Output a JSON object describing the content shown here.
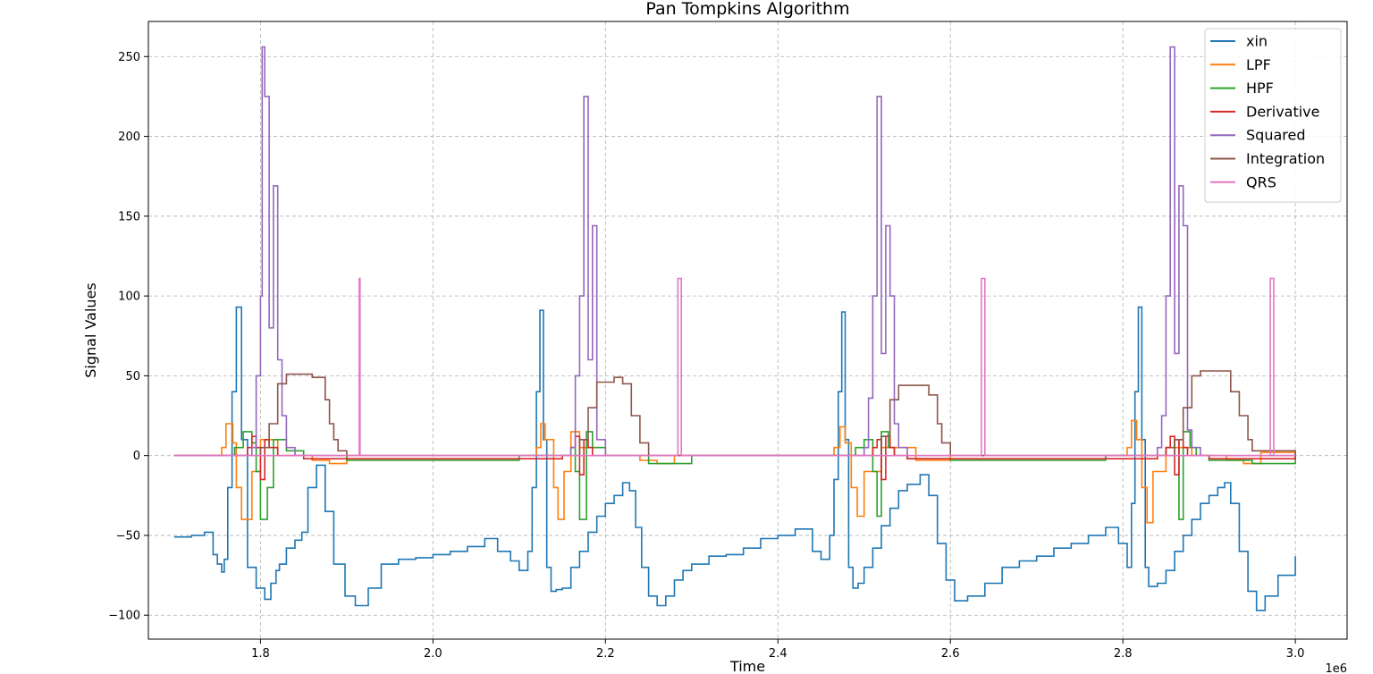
{
  "chart_data": {
    "type": "line",
    "title": "Pan Tompkins Algorithm",
    "xlabel": "Time",
    "ylabel": "Signal Values",
    "x_scale_label": "1e6",
    "xlim": [
      1.67,
      3.06
    ],
    "ylim": [
      -115,
      272
    ],
    "x_ticks": [
      1.8,
      2.0,
      2.2,
      2.4,
      2.6,
      2.8,
      3.0
    ],
    "x_tick_labels": [
      "1.8",
      "2.0",
      "2.2",
      "2.4",
      "2.6",
      "2.8",
      "3.0"
    ],
    "y_ticks": [
      -100,
      -50,
      0,
      50,
      100,
      150,
      200,
      250
    ],
    "y_tick_labels": [
      "−100",
      "−50",
      "0",
      "50",
      "100",
      "150",
      "200",
      "250"
    ],
    "grid": true,
    "legend_position": "top-right",
    "step": true,
    "series": [
      {
        "name": "xin",
        "color": "#1f77b4",
        "x": [
          1.7,
          1.72,
          1.735,
          1.745,
          1.75,
          1.755,
          1.758,
          1.762,
          1.767,
          1.772,
          1.778,
          1.785,
          1.795,
          1.805,
          1.812,
          1.818,
          1.822,
          1.83,
          1.84,
          1.848,
          1.855,
          1.865,
          1.875,
          1.885,
          1.898,
          1.91,
          1.925,
          1.94,
          1.96,
          1.98,
          2.0,
          2.02,
          2.04,
          2.06,
          2.075,
          2.09,
          2.1,
          2.11,
          2.115,
          2.12,
          2.124,
          2.128,
          2.132,
          2.137,
          2.143,
          2.15,
          2.16,
          2.17,
          2.18,
          2.19,
          2.2,
          2.21,
          2.22,
          2.228,
          2.235,
          2.242,
          2.25,
          2.26,
          2.27,
          2.28,
          2.29,
          2.3,
          2.32,
          2.34,
          2.36,
          2.38,
          2.4,
          2.42,
          2.44,
          2.45,
          2.46,
          2.465,
          2.47,
          2.474,
          2.478,
          2.482,
          2.487,
          2.493,
          2.5,
          2.51,
          2.52,
          2.53,
          2.54,
          2.55,
          2.565,
          2.575,
          2.585,
          2.595,
          2.605,
          2.62,
          2.64,
          2.66,
          2.68,
          2.7,
          2.72,
          2.74,
          2.76,
          2.78,
          2.795,
          2.805,
          2.81,
          2.814,
          2.818,
          2.822,
          2.826,
          2.83,
          2.84,
          2.85,
          2.86,
          2.87,
          2.88,
          2.89,
          2.9,
          2.91,
          2.918,
          2.925,
          2.935,
          2.945,
          2.955,
          2.965,
          2.98,
          3.0
        ],
        "y": [
          -51,
          -50,
          -48,
          -62,
          -68,
          -73,
          -65,
          -20,
          40,
          93,
          10,
          -70,
          -83,
          -90,
          -80,
          -72,
          -68,
          -58,
          -53,
          -48,
          -20,
          -6,
          -35,
          -68,
          -88,
          -94,
          -83,
          -68,
          -65,
          -64,
          -62,
          -60,
          -57,
          -52,
          -60,
          -66,
          -72,
          -60,
          -20,
          40,
          91,
          10,
          -70,
          -85,
          -84,
          -83,
          -70,
          -60,
          -48,
          -38,
          -30,
          -25,
          -17,
          -22,
          -45,
          -70,
          -88,
          -94,
          -88,
          -78,
          -72,
          -68,
          -63,
          -62,
          -58,
          -52,
          -50,
          -46,
          -60,
          -65,
          -50,
          -15,
          40,
          90,
          10,
          -70,
          -83,
          -80,
          -70,
          -58,
          -44,
          -33,
          -22,
          -18,
          -12,
          -25,
          -55,
          -78,
          -91,
          -88,
          -80,
          -70,
          -66,
          -63,
          -58,
          -55,
          -50,
          -45,
          -55,
          -70,
          -30,
          40,
          93,
          10,
          -70,
          -82,
          -80,
          -72,
          -60,
          -50,
          -40,
          -30,
          -25,
          -20,
          -17,
          -30,
          -60,
          -85,
          -97,
          -88,
          -75,
          -63
        ]
      },
      {
        "name": "LPF",
        "color": "#ff7f0e",
        "x": [
          1.7,
          1.74,
          1.755,
          1.76,
          1.768,
          1.772,
          1.778,
          1.79,
          1.8,
          1.82,
          1.86,
          1.88,
          1.9,
          2.1,
          2.12,
          2.125,
          2.13,
          2.14,
          2.145,
          2.152,
          2.16,
          2.17,
          2.2,
          2.24,
          2.26,
          2.28,
          2.45,
          2.465,
          2.472,
          2.478,
          2.485,
          2.492,
          2.5,
          2.52,
          2.56,
          2.58,
          2.6,
          2.78,
          2.805,
          2.81,
          2.816,
          2.822,
          2.828,
          2.835,
          2.85,
          2.88,
          2.92,
          2.94,
          2.96,
          3.0
        ],
        "y": [
          0,
          0,
          5,
          20,
          8,
          -20,
          -40,
          -10,
          10,
          0,
          -3,
          -5,
          0,
          0,
          5,
          20,
          10,
          -20,
          -40,
          -10,
          15,
          5,
          0,
          -3,
          -5,
          0,
          0,
          5,
          18,
          8,
          -20,
          -38,
          -10,
          5,
          -3,
          -3,
          0,
          0,
          5,
          22,
          10,
          -20,
          -42,
          -10,
          5,
          0,
          -3,
          -5,
          2,
          0
        ]
      },
      {
        "name": "HPF",
        "color": "#2ca02c",
        "x": [
          1.7,
          1.76,
          1.77,
          1.78,
          1.79,
          1.795,
          1.8,
          1.808,
          1.815,
          1.83,
          1.85,
          1.9,
          2.1,
          2.15,
          2.16,
          2.165,
          2.17,
          2.178,
          2.185,
          2.2,
          2.25,
          2.3,
          2.45,
          2.49,
          2.5,
          2.51,
          2.515,
          2.52,
          2.528,
          2.535,
          2.55,
          2.6,
          2.78,
          2.84,
          2.85,
          2.86,
          2.865,
          2.87,
          2.878,
          2.885,
          2.9,
          2.95,
          3.0
        ],
        "y": [
          0,
          0,
          5,
          15,
          8,
          -10,
          -40,
          -20,
          10,
          3,
          0,
          -3,
          0,
          0,
          5,
          -10,
          -40,
          15,
          5,
          0,
          -5,
          0,
          0,
          5,
          10,
          -10,
          -38,
          15,
          5,
          0,
          -2,
          -3,
          0,
          0,
          5,
          10,
          -40,
          15,
          5,
          0,
          -3,
          -5,
          0
        ]
      },
      {
        "name": "Derivative",
        "color": "#d62728",
        "x": [
          1.7,
          1.78,
          1.785,
          1.79,
          1.795,
          1.8,
          1.805,
          1.81,
          1.82,
          1.85,
          2.15,
          2.16,
          2.165,
          2.17,
          2.175,
          2.18,
          2.185,
          2.2,
          2.5,
          2.51,
          2.515,
          2.52,
          2.525,
          2.53,
          2.535,
          2.55,
          2.84,
          2.85,
          2.855,
          2.86,
          2.865,
          2.87,
          2.875,
          2.9,
          3.0
        ],
        "y": [
          0,
          0,
          5,
          12,
          5,
          -15,
          10,
          5,
          0,
          -2,
          0,
          5,
          12,
          -12,
          10,
          5,
          0,
          0,
          0,
          5,
          10,
          -15,
          12,
          5,
          0,
          -2,
          0,
          5,
          12,
          -12,
          10,
          5,
          0,
          -2,
          0
        ]
      },
      {
        "name": "Squared",
        "color": "#9467bd",
        "x": [
          1.7,
          1.79,
          1.795,
          1.8,
          1.802,
          1.805,
          1.81,
          1.815,
          1.82,
          1.825,
          1.83,
          1.84,
          2.16,
          2.165,
          2.17,
          2.175,
          2.18,
          2.185,
          2.19,
          2.2,
          2.5,
          2.505,
          2.51,
          2.515,
          2.52,
          2.525,
          2.53,
          2.535,
          2.54,
          2.55,
          2.84,
          2.845,
          2.85,
          2.855,
          2.86,
          2.865,
          2.87,
          2.875,
          2.88,
          2.89,
          3.0
        ],
        "y": [
          0,
          5,
          50,
          100,
          256,
          225,
          80,
          169,
          60,
          25,
          5,
          0,
          5,
          50,
          100,
          225,
          60,
          144,
          10,
          0,
          5,
          36,
          100,
          225,
          64,
          144,
          100,
          20,
          5,
          0,
          5,
          25,
          100,
          256,
          64,
          169,
          144,
          16,
          5,
          0,
          0
        ]
      },
      {
        "name": "Integration",
        "color": "#8c564b",
        "x": [
          1.7,
          1.78,
          1.8,
          1.81,
          1.82,
          1.83,
          1.84,
          1.86,
          1.875,
          1.88,
          1.885,
          1.89,
          1.9,
          2.16,
          2.17,
          2.18,
          2.19,
          2.21,
          2.22,
          2.23,
          2.24,
          2.25,
          2.51,
          2.52,
          2.53,
          2.54,
          2.56,
          2.575,
          2.585,
          2.59,
          2.6,
          2.85,
          2.86,
          2.87,
          2.88,
          2.89,
          2.91,
          2.925,
          2.935,
          2.945,
          2.95,
          3.0
        ],
        "y": [
          0,
          0,
          5,
          20,
          45,
          51,
          51,
          49,
          35,
          20,
          10,
          3,
          0,
          0,
          10,
          30,
          46,
          49,
          45,
          25,
          8,
          0,
          0,
          12,
          35,
          44,
          44,
          38,
          20,
          8,
          0,
          0,
          10,
          30,
          50,
          53,
          53,
          40,
          25,
          10,
          3,
          0
        ]
      },
      {
        "name": "QRS",
        "color": "#e377c2",
        "x": [
          1.7,
          1.9135,
          1.9145,
          1.9155,
          2.283,
          2.284,
          2.287,
          2.288,
          2.635,
          2.636,
          2.639,
          2.64,
          2.97,
          2.971,
          2.974,
          2.975,
          3.0
        ],
        "y": [
          0,
          0,
          111,
          0,
          0,
          111,
          111,
          0,
          0,
          111,
          111,
          0,
          0,
          111,
          111,
          0,
          0
        ]
      }
    ]
  }
}
